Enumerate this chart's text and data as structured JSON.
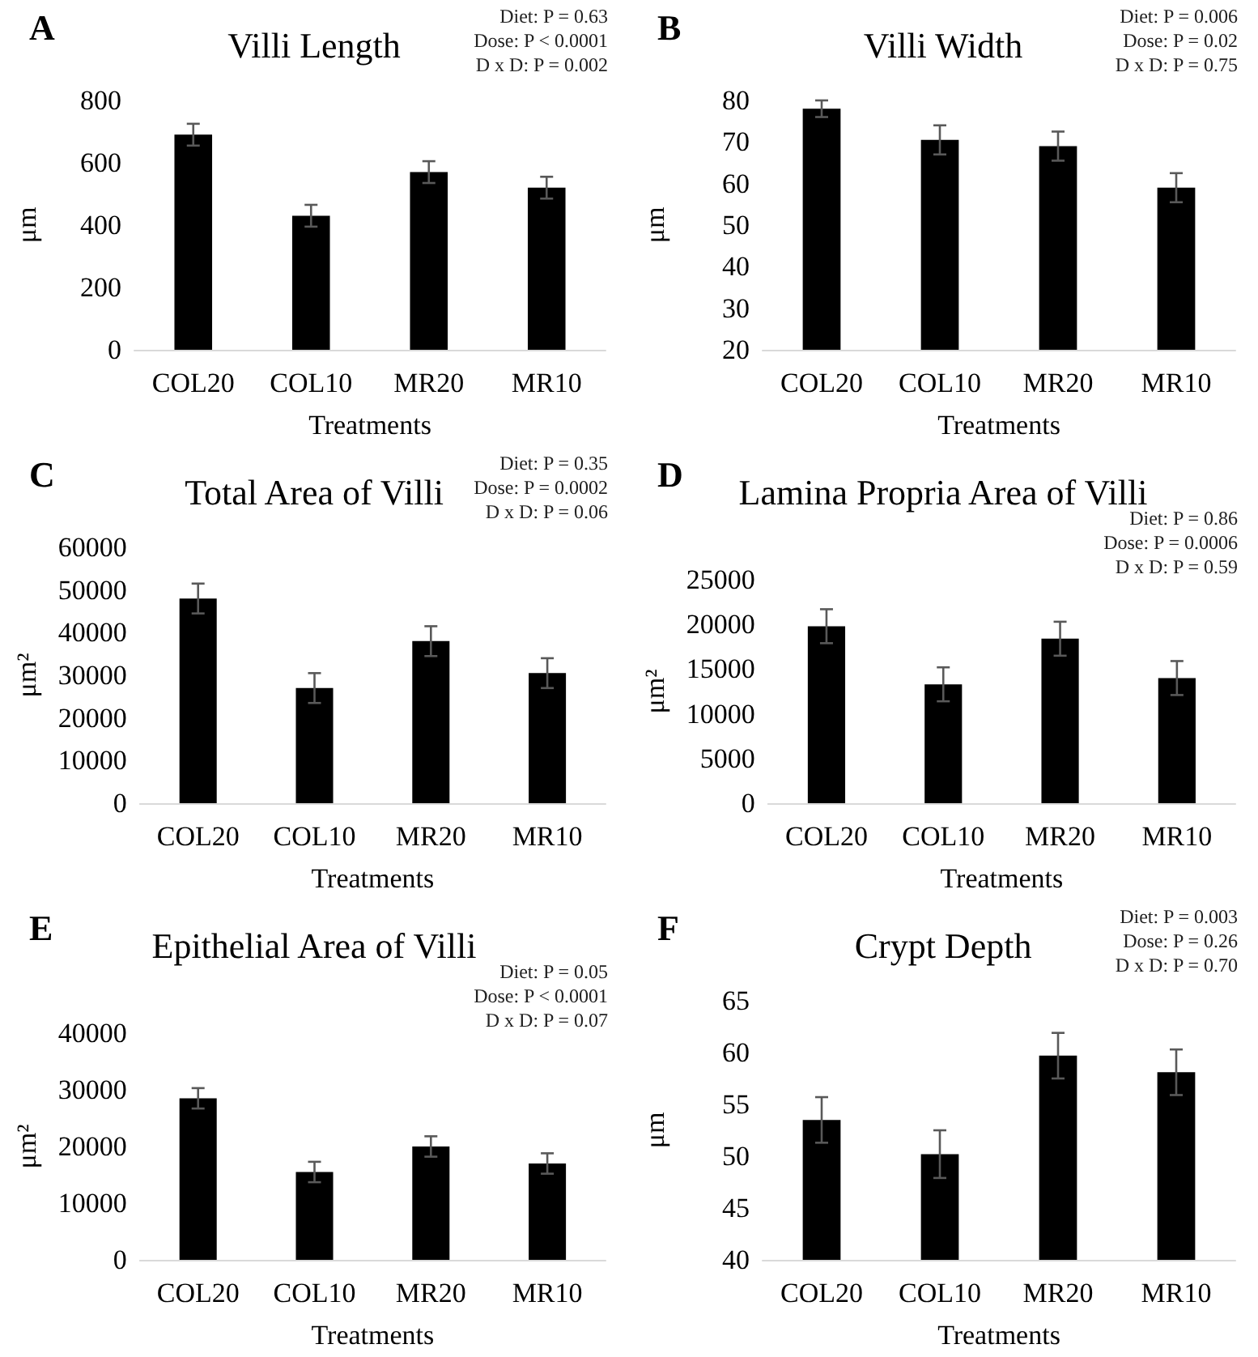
{
  "chart_data": [
    {
      "type": "bar",
      "title": "Villi Length",
      "xlabel": "Treatments",
      "ylabel": "μm",
      "categories": [
        "COL20",
        "COL10",
        "MR20",
        "MR10"
      ],
      "color": "#000000",
      "values": [
        690,
        430,
        570,
        520
      ],
      "errors": [
        35,
        35,
        35,
        35
      ],
      "ylim": [
        0,
        800
      ],
      "yticks": [
        0,
        200,
        400,
        600,
        800
      ],
      "grid": false,
      "annotations": [
        "A",
        "Diet: P = 0.63",
        "Dose: P < 0.0001",
        "D x D: P = 0.002"
      ]
    },
    {
      "type": "bar",
      "title": "Villi Width",
      "xlabel": "Treatments",
      "ylabel": "μm",
      "categories": [
        "COL20",
        "COL10",
        "MR20",
        "MR10"
      ],
      "color": "#000000",
      "values": [
        78,
        70.5,
        69,
        59
      ],
      "errors": [
        2,
        3.5,
        3.5,
        3.5
      ],
      "ylim": [
        20,
        80
      ],
      "yticks": [
        20,
        30,
        40,
        50,
        60,
        70,
        80
      ],
      "grid": false,
      "annotations": [
        "B",
        "Diet: P = 0.006",
        "Dose: P = 0.02",
        "D x D: P = 0.75"
      ]
    },
    {
      "type": "bar",
      "title": "Total Area of Villi",
      "xlabel": "Treatments",
      "ylabel": "μm²",
      "categories": [
        "COL20",
        "COL10",
        "MR20",
        "MR10"
      ],
      "color": "#000000",
      "values": [
        48000,
        27000,
        38000,
        30500
      ],
      "errors": [
        3500,
        3500,
        3500,
        3500
      ],
      "ylim": [
        0,
        60000
      ],
      "yticks": [
        0,
        10000,
        20000,
        30000,
        40000,
        50000,
        60000
      ],
      "grid": false,
      "annotations": [
        "C",
        "Diet: P = 0.35",
        "Dose: P = 0.0002",
        "D x D: P = 0.06"
      ]
    },
    {
      "type": "bar",
      "title": "Lamina Propria Area of Villi",
      "xlabel": "Treatments",
      "ylabel": "μm²",
      "categories": [
        "COL20",
        "COL10",
        "MR20",
        "MR10"
      ],
      "color": "#000000",
      "values": [
        19800,
        13300,
        18400,
        14000
      ],
      "errors": [
        1900,
        1900,
        1900,
        1900
      ],
      "ylim": [
        0,
        25000
      ],
      "yticks": [
        0,
        5000,
        10000,
        15000,
        20000,
        25000
      ],
      "grid": false,
      "annotations": [
        "D",
        "Diet: P = 0.86",
        "Dose: P = 0.0006",
        "D x D: P = 0.59"
      ]
    },
    {
      "type": "bar",
      "title": "Epithelial Area of Villi",
      "xlabel": "Treatments",
      "ylabel": "μm²",
      "categories": [
        "COL20",
        "COL10",
        "MR20",
        "MR10"
      ],
      "color": "#000000",
      "values": [
        28500,
        15500,
        20000,
        17000
      ],
      "errors": [
        1800,
        1800,
        1800,
        1800
      ],
      "ylim": [
        0,
        40000
      ],
      "yticks": [
        0,
        10000,
        20000,
        30000,
        40000
      ],
      "grid": false,
      "annotations": [
        "E",
        "Diet: P = 0.05",
        "Dose: P < 0.0001",
        "D x D: P = 0.07"
      ]
    },
    {
      "type": "bar",
      "title": "Crypt Depth",
      "xlabel": "Treatments",
      "ylabel": "μm",
      "categories": [
        "COL20",
        "COL10",
        "MR20",
        "MR10"
      ],
      "color": "#000000",
      "values": [
        53.5,
        50.2,
        59.7,
        58.1
      ],
      "errors": [
        2.2,
        2.3,
        2.2,
        2.2
      ],
      "ylim": [
        40,
        65
      ],
      "yticks": [
        40,
        45,
        50,
        55,
        60,
        65
      ],
      "grid": false,
      "annotations": [
        "F",
        "Diet: P = 0.003",
        "Dose: P = 0.26",
        "D x D: P = 0.70"
      ]
    }
  ]
}
